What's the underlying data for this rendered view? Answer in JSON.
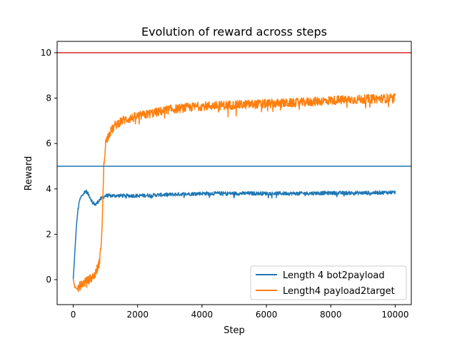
{
  "chart_data": {
    "type": "line",
    "title": "Evolution of reward across steps",
    "xlabel": "Step",
    "ylabel": "Reward",
    "xlim": [
      -500,
      10500
    ],
    "ylim": [
      -1.1,
      10.5
    ],
    "xticks": [
      0,
      2000,
      4000,
      6000,
      8000,
      10000
    ],
    "yticks": [
      0,
      2,
      4,
      6,
      8,
      10
    ],
    "grid": false,
    "legend_position": "lower-right",
    "series": [
      {
        "name": "Length 4 bot2payload",
        "color": "#1f77b4",
        "noise": 0.1,
        "points": [
          [
            0,
            0.0
          ],
          [
            50,
            1.2
          ],
          [
            100,
            2.4
          ],
          [
            150,
            3.1
          ],
          [
            200,
            3.5
          ],
          [
            300,
            3.8
          ],
          [
            400,
            3.9
          ],
          [
            500,
            3.7
          ],
          [
            600,
            3.4
          ],
          [
            700,
            3.3
          ],
          [
            800,
            3.5
          ],
          [
            900,
            3.6
          ],
          [
            1000,
            3.7
          ],
          [
            1500,
            3.7
          ],
          [
            2000,
            3.7
          ],
          [
            3000,
            3.75
          ],
          [
            4000,
            3.8
          ],
          [
            5000,
            3.8
          ],
          [
            6000,
            3.8
          ],
          [
            7000,
            3.8
          ],
          [
            8000,
            3.82
          ],
          [
            9000,
            3.82
          ],
          [
            10000,
            3.85
          ]
        ]
      },
      {
        "name": "Length4 payload2target",
        "color": "#ff7f0e",
        "noise": 0.25,
        "points": [
          [
            0,
            0.0
          ],
          [
            50,
            -0.3
          ],
          [
            100,
            -0.45
          ],
          [
            200,
            -0.3
          ],
          [
            300,
            -0.15
          ],
          [
            400,
            -0.1
          ],
          [
            500,
            0.0
          ],
          [
            600,
            0.1
          ],
          [
            700,
            0.3
          ],
          [
            800,
            0.7
          ],
          [
            850,
            1.2
          ],
          [
            900,
            2.5
          ],
          [
            950,
            5.0
          ],
          [
            1000,
            6.0
          ],
          [
            1100,
            6.4
          ],
          [
            1300,
            6.8
          ],
          [
            1500,
            7.0
          ],
          [
            2000,
            7.2
          ],
          [
            2500,
            7.35
          ],
          [
            3000,
            7.5
          ],
          [
            4000,
            7.65
          ],
          [
            5000,
            7.7
          ],
          [
            6000,
            7.75
          ],
          [
            7000,
            7.8
          ],
          [
            8000,
            7.9
          ],
          [
            9000,
            7.95
          ],
          [
            10000,
            8.0
          ]
        ]
      }
    ],
    "hlines": [
      {
        "y": 10,
        "color": "#d62728"
      },
      {
        "y": 5,
        "color": "#1f77b4"
      }
    ]
  }
}
